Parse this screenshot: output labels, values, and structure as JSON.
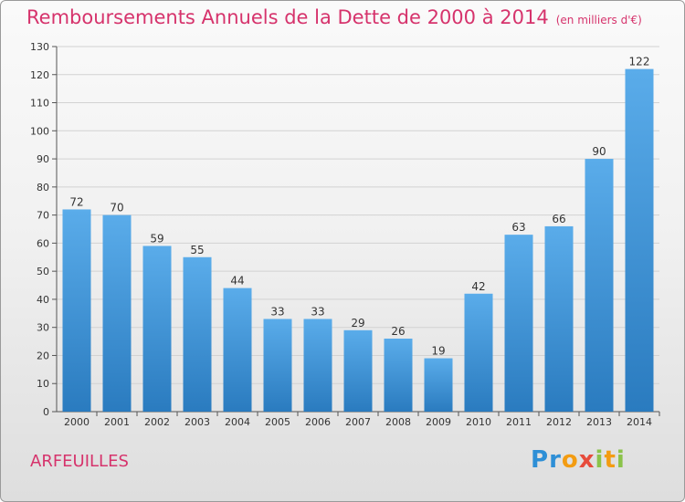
{
  "chart_data": {
    "type": "bar",
    "title": "Remboursements Annuels de la Dette de 2000 à 2014",
    "unit_note": "(en milliers d'€)",
    "categories": [
      "2000",
      "2001",
      "2002",
      "2003",
      "2004",
      "2005",
      "2006",
      "2007",
      "2008",
      "2009",
      "2010",
      "2011",
      "2012",
      "2013",
      "2014"
    ],
    "values": [
      72,
      70,
      59,
      55,
      44,
      33,
      33,
      29,
      26,
      19,
      42,
      63,
      66,
      90,
      122
    ],
    "ylim": [
      0,
      130
    ],
    "yticks": [
      0,
      10,
      20,
      30,
      40,
      50,
      60,
      70,
      80,
      90,
      100,
      110,
      120,
      130
    ],
    "grid": true,
    "xlabel": "",
    "ylabel": "",
    "bar_color_top": "#5aacea",
    "bar_color_bottom": "#2a7bbf"
  },
  "footer": {
    "commune": "ARFEUILLES",
    "logo_letters": [
      "P",
      "r",
      "o",
      "x",
      "i",
      "t",
      "i"
    ],
    "logo_colors": [
      "#2e8fd6",
      "#2e8fd6",
      "#f39c12",
      "#e74c3c",
      "#8bc34a",
      "#f39c12",
      "#8bc34a"
    ]
  }
}
